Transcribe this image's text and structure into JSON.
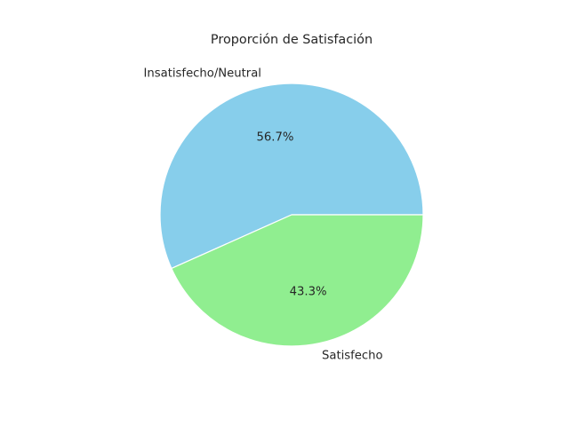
{
  "chart_data": {
    "type": "pie",
    "title": "Proporción de Satisfación",
    "labels": [
      "Insatisfecho/Neutral",
      "Satisfecho"
    ],
    "values": [
      56.7,
      43.3
    ],
    "value_labels": [
      "56.7%",
      "43.3%"
    ],
    "colors": [
      "#87CEEB",
      "#90EE90"
    ],
    "start_angle_deg": 0,
    "direction": "counterclockwise",
    "edge_color": "#ffffff",
    "legend": "none"
  }
}
